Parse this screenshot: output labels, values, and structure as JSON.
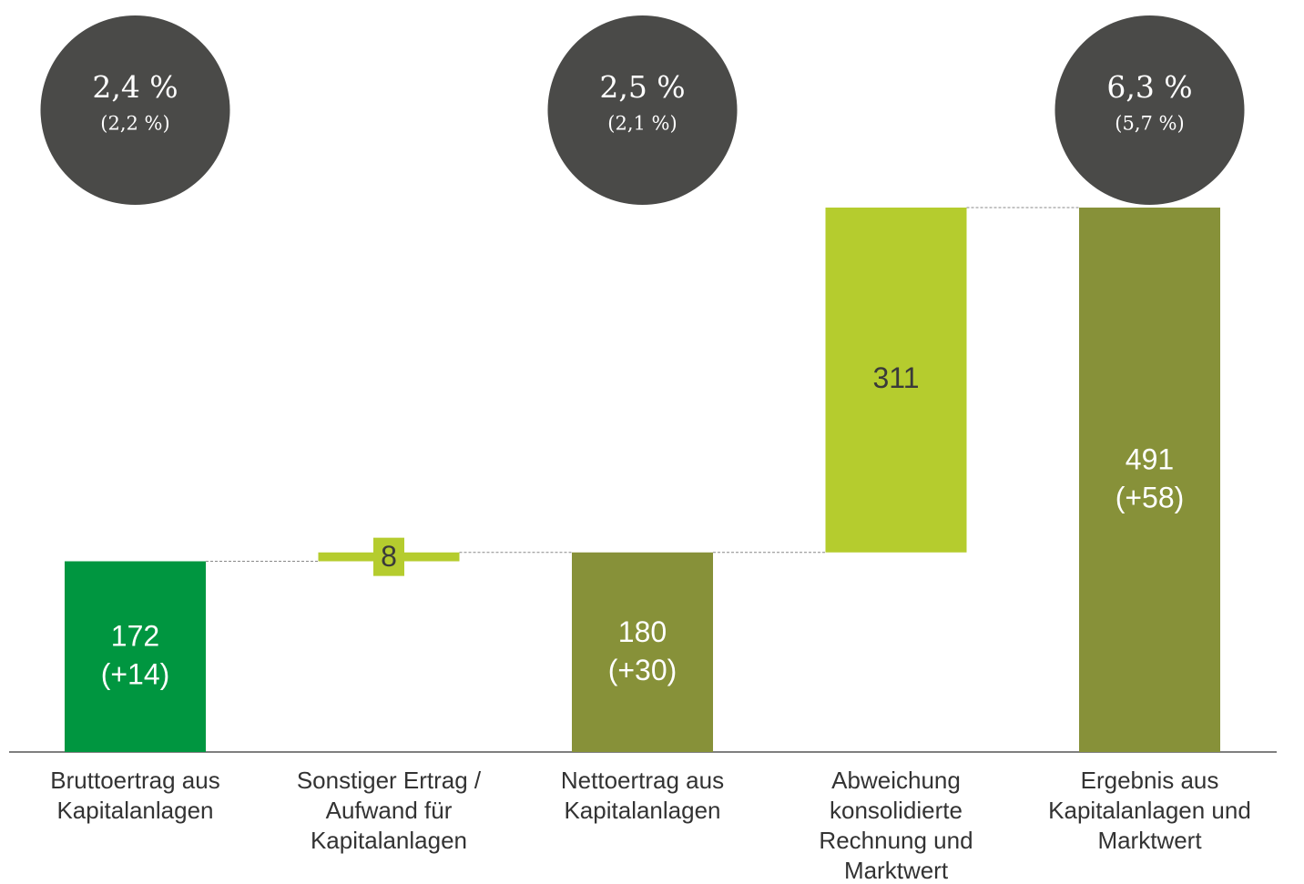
{
  "chart_data": {
    "type": "waterfall",
    "categories": [
      [
        "Bruttoertrag aus",
        "Kapitalanlagen"
      ],
      [
        "Sonstiger Ertrag /",
        "Aufwand für",
        "Kapitalanlagen"
      ],
      [
        "Nettoertrag aus",
        "Kapitalanlagen"
      ],
      [
        "Abweichung",
        "konsolidierte",
        "Rechnung und",
        "Marktwert"
      ],
      [
        "Ergebnis aus",
        "Kapitalanlagen und",
        "Marktwert"
      ]
    ],
    "measures": [
      "absolute",
      "relative",
      "total",
      "relative",
      "total"
    ],
    "values": [
      172,
      8,
      180,
      311,
      491
    ],
    "colors": [
      "#009640",
      "#b5cc2e",
      "#879139",
      "#b5cc2e",
      "#879139"
    ],
    "changes": [
      14,
      null,
      30,
      null,
      58
    ],
    "change_labels": [
      "(+14)",
      null,
      "(+30)",
      null,
      "(+58)"
    ],
    "rates": [
      2.4,
      null,
      2.5,
      null,
      6.3
    ],
    "rate_labels": [
      "2,4 %",
      null,
      "2,5 %",
      null,
      "6,3 %"
    ],
    "prior_rates": [
      2.2,
      null,
      2.1,
      null,
      5.7
    ],
    "prior_rate_labels": [
      "(2,2 %)",
      null,
      "(2,1 %)",
      null,
      "(5,7 %)"
    ],
    "connectors": true
  }
}
